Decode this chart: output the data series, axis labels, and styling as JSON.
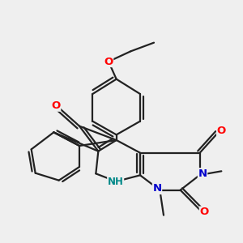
{
  "background_color": "#efefef",
  "bond_color": "#222222",
  "bond_width": 1.6,
  "atom_colors": {
    "O": "#ff0000",
    "N": "#0000cc",
    "NH": "#008888"
  },
  "font_size": 7.5
}
